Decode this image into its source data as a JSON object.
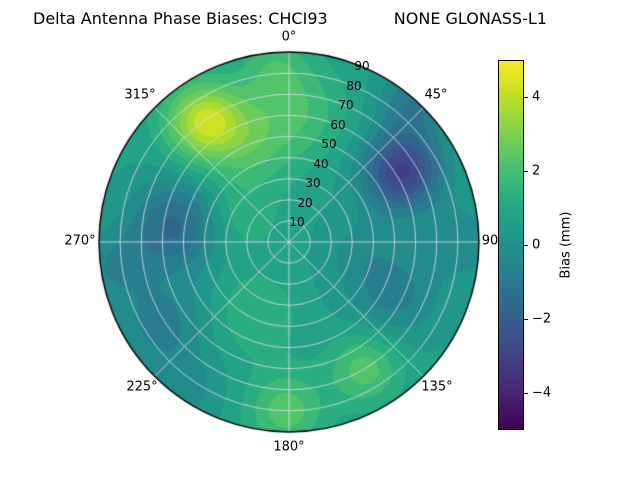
{
  "title": "Delta Antenna Phase Biases: CHCI93             NONE GLONASS-L1",
  "chart_data": {
    "type": "heatmap",
    "subtype": "polar_filled_contour",
    "station": "CHCI93",
    "signal": "NONE GLONASS-L1",
    "azimuth_labels": [
      "0°",
      "45°",
      "90",
      "135°",
      "180°",
      "225°",
      "270°",
      "315°"
    ],
    "radial_ticks": [
      10,
      20,
      30,
      40,
      50,
      60,
      70,
      80,
      90
    ],
    "radial_max": 90,
    "level_step": 0.5,
    "base_value": 0.6,
    "colorbar": {
      "label": "Bias (mm)",
      "min": -5,
      "max": 5,
      "ticks": [
        -4,
        -2,
        0,
        2,
        4
      ],
      "tick_labels": [
        "−4",
        "−2",
        "0",
        "2",
        "4"
      ],
      "colormap": "viridis"
    },
    "grid_color": "#e1e1ee",
    "outline_color": "#000000",
    "blobs": [
      {
        "az": 58,
        "r": 63,
        "sigma": 13,
        "amp": -3.7
      },
      {
        "az": 42,
        "r": 88,
        "sigma": 12,
        "amp": -1.5
      },
      {
        "az": 325,
        "r": 70,
        "sigma": 13,
        "amp": 3.4
      },
      {
        "az": 338,
        "r": 50,
        "sigma": 15,
        "amp": 1.3
      },
      {
        "az": 5,
        "r": 62,
        "sigma": 16,
        "amp": 1.2
      },
      {
        "az": 355,
        "r": 83,
        "sigma": 12,
        "amp": 1.1
      },
      {
        "az": 278,
        "r": 55,
        "sigma": 15,
        "amp": -2.2
      },
      {
        "az": 262,
        "r": 85,
        "sigma": 13,
        "amp": -1.0
      },
      {
        "az": 237,
        "r": 72,
        "sigma": 15,
        "amp": -1.3
      },
      {
        "az": 215,
        "r": 85,
        "sigma": 12,
        "amp": -0.8
      },
      {
        "az": 181,
        "r": 80,
        "sigma": 13,
        "amp": 1.7
      },
      {
        "az": 149,
        "r": 70,
        "sigma": 12,
        "amp": 1.7
      },
      {
        "az": 117,
        "r": 57,
        "sigma": 15,
        "amp": -1.2
      },
      {
        "az": 100,
        "r": 35,
        "sigma": 14,
        "amp": -0.7
      },
      {
        "az": 90,
        "r": 83,
        "sigma": 13,
        "amp": -0.9
      },
      {
        "az": 205,
        "r": 38,
        "sigma": 14,
        "amp": 0.9
      },
      {
        "az": 300,
        "r": 25,
        "sigma": 12,
        "amp": 0.8
      }
    ],
    "viridis_stops": [
      [
        0.0,
        68,
        1,
        84
      ],
      [
        0.1,
        72,
        36,
        117
      ],
      [
        0.2,
        65,
        68,
        135
      ],
      [
        0.3,
        53,
        95,
        141
      ],
      [
        0.4,
        42,
        120,
        142
      ],
      [
        0.5,
        33,
        145,
        140
      ],
      [
        0.6,
        34,
        168,
        132
      ],
      [
        0.7,
        68,
        190,
        112
      ],
      [
        0.8,
        122,
        209,
        81
      ],
      [
        0.9,
        189,
        223,
        38
      ],
      [
        1.0,
        253,
        231,
        37
      ]
    ]
  }
}
